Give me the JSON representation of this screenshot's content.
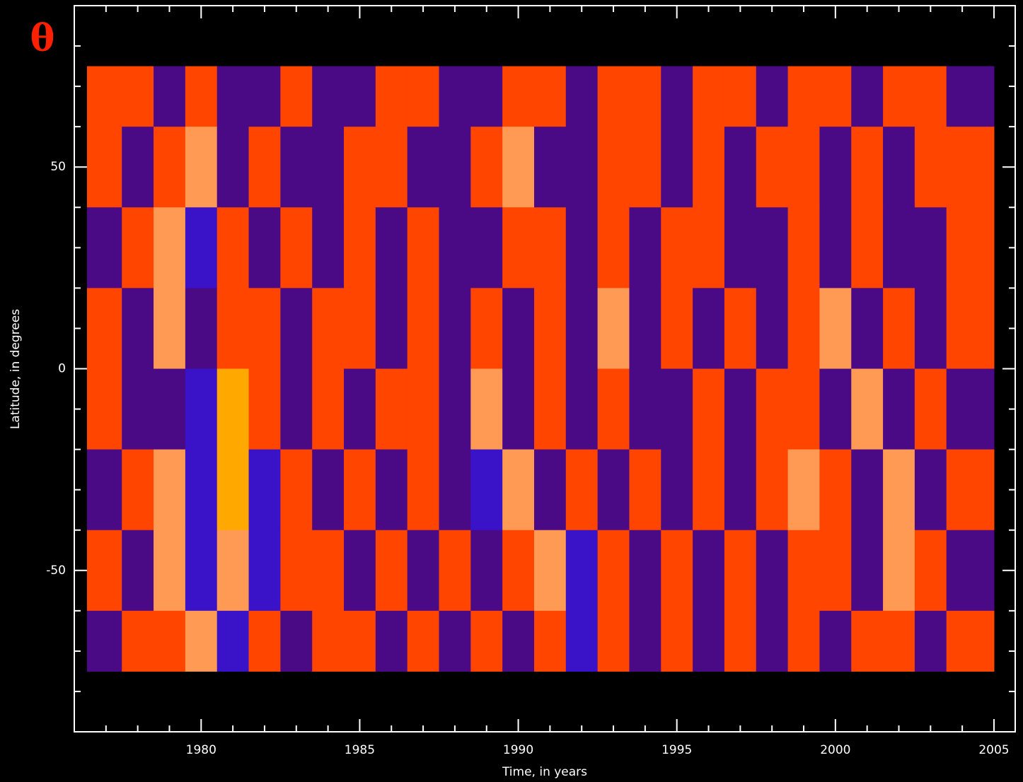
{
  "chart_data": {
    "type": "contour",
    "annotation": "θ",
    "xlabel": "Time, in years",
    "ylabel": "Latitude, in degrees",
    "xlim": [
      1976,
      2005.67
    ],
    "ylim": [
      -90,
      90
    ],
    "xticks": [
      1980,
      1985,
      1990,
      1995,
      2000,
      2005
    ],
    "yticks": [
      -50,
      0,
      50
    ],
    "xminorticks": [
      1977,
      1978,
      1979,
      1981,
      1982,
      1983,
      1984,
      1986,
      1987,
      1988,
      1989,
      1991,
      1992,
      1993,
      1994,
      1996,
      1997,
      1998,
      1999,
      2001,
      2002,
      2003,
      2004
    ],
    "yminorticks": [
      -80,
      -70,
      -60,
      -40,
      -30,
      -20,
      -10,
      10,
      20,
      30,
      40,
      60,
      70,
      80
    ],
    "field_xlim": [
      1976.4,
      2005
    ],
    "field_ylim": [
      -75,
      75
    ],
    "levels": [
      -2,
      -1,
      1,
      2,
      3
    ],
    "colors": [
      "#3a12c8",
      "#4a0a86",
      "#ff4500",
      "#ff9a55",
      "#ffa800"
    ],
    "x": [
      1977,
      1978,
      1979,
      1980,
      1981,
      1982,
      1983,
      1984,
      1985,
      1986,
      1987,
      1988,
      1989,
      1990,
      1991,
      1992,
      1993,
      1994,
      1995,
      1996,
      1997,
      1998,
      1999,
      2000,
      2001,
      2002,
      2003,
      2004
    ],
    "y": [
      70,
      50,
      30,
      10,
      -10,
      -30,
      -50,
      -70
    ],
    "z": [
      [
        1,
        1,
        -1,
        1,
        -1,
        -1,
        1,
        -1,
        -1,
        1,
        1,
        -1,
        -1,
        1,
        1,
        -1,
        1,
        1,
        -1,
        1,
        1,
        -1,
        1,
        1,
        -1,
        1,
        1,
        -1
      ],
      [
        1,
        -1,
        1,
        2,
        -1,
        1,
        -1,
        -1,
        1,
        1,
        -1,
        -1,
        1,
        2,
        -1,
        -1,
        1,
        1,
        -1,
        1,
        -1,
        1,
        1,
        -1,
        1,
        -1,
        1,
        1
      ],
      [
        -1,
        1,
        2,
        -2,
        1,
        -1,
        1,
        -1,
        1,
        -1,
        1,
        -1,
        -1,
        1,
        1,
        -1,
        1,
        -1,
        1,
        1,
        -1,
        -1,
        1,
        -1,
        1,
        -1,
        -1,
        1
      ],
      [
        1,
        -1,
        2,
        -1,
        1,
        1,
        -1,
        1,
        1,
        -1,
        1,
        -1,
        1,
        -1,
        1,
        -1,
        2,
        -1,
        1,
        -1,
        1,
        -1,
        1,
        2,
        -1,
        1,
        -1,
        1
      ],
      [
        1,
        -1,
        -1,
        -2,
        3,
        1,
        -1,
        1,
        -1,
        1,
        1,
        -1,
        2,
        -1,
        1,
        -1,
        1,
        -1,
        -1,
        1,
        -1,
        1,
        1,
        -1,
        2,
        -1,
        1,
        -1
      ],
      [
        -1,
        1,
        2,
        -2,
        3,
        -2,
        1,
        -1,
        1,
        -1,
        1,
        -1,
        -2,
        2,
        -1,
        1,
        -1,
        1,
        -1,
        1,
        -1,
        1,
        2,
        1,
        -1,
        2,
        -1,
        1
      ],
      [
        1,
        -1,
        2,
        -2,
        2,
        -2,
        1,
        1,
        -1,
        1,
        -1,
        1,
        -1,
        1,
        2,
        -2,
        1,
        -1,
        1,
        -1,
        1,
        -1,
        1,
        1,
        -1,
        2,
        1,
        -1
      ],
      [
        -1,
        1,
        1,
        2,
        -2,
        1,
        -1,
        1,
        1,
        -1,
        1,
        -1,
        1,
        -1,
        1,
        -2,
        1,
        -1,
        1,
        -1,
        1,
        -1,
        1,
        -1,
        1,
        1,
        -1,
        1
      ]
    ]
  }
}
